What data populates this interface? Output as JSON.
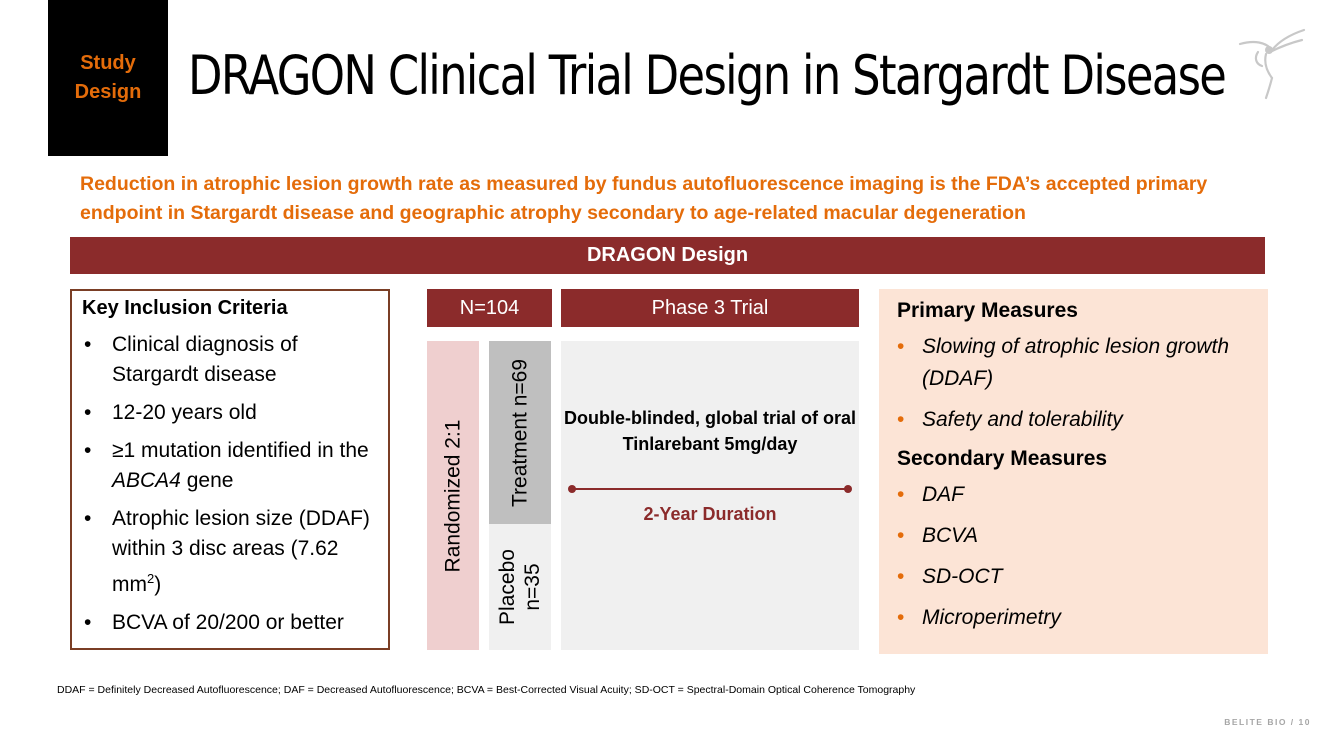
{
  "tag": {
    "line1": "Study",
    "line2": "Design"
  },
  "title": "DRAGON Clinical Trial Design in Stargardt Disease",
  "intro": "Reduction in atrophic lesion growth rate as measured by fundus autofluorescence imaging is the FDA’s accepted primary endpoint in Stargardt disease and geographic atrophy secondary to age-related macular degeneration",
  "banner": "DRAGON Design",
  "inclusion": {
    "heading": "Key Inclusion Criteria",
    "bullet": "•",
    "item1": "Clinical diagnosis of Stargardt disease",
    "item2": "12-20 years old",
    "item3_pre": "≥1 mutation identified in the ",
    "item3_gene": "ABCA4",
    "item3_post": " gene",
    "item4_pre": "Atrophic lesion size (DDAF) within 3 disc areas (7.62 mm",
    "item4_sup": "2",
    "item4_post": ")",
    "item5": "BCVA of 20/200 or better"
  },
  "design": {
    "n_label": "N=104",
    "phase_label": "Phase 3 Trial",
    "randomized": "Randomized 2:1",
    "treatment": "Treatment n=69",
    "placebo_line1": "Placebo",
    "placebo_line2": "n=35",
    "description": "Double-blinded, global trial of oral Tinlarebant 5mg/day",
    "duration": "2-Year Duration"
  },
  "measures": {
    "primary_heading": "Primary Measures",
    "primary": [
      "Slowing of atrophic lesion growth (DDAF)",
      "Safety and tolerability"
    ],
    "secondary_heading": "Secondary Measures",
    "secondary": [
      "DAF",
      "BCVA",
      "SD-OCT",
      "Microperimetry"
    ],
    "bullet": "•"
  },
  "footnote": "DDAF = Definitely Decreased Autofluorescence; DAF = Decreased Autofluorescence; BCVA = Best-Corrected Visual Acuity; SD-OCT = Spectral-Domain Optical Coherence Tomography",
  "page_footer": "BELITE BIO  /  10",
  "colors": {
    "accent": "#e46c0a",
    "maroon": "#8b2b2b",
    "peach": "#fce4d6",
    "pink": "#efcfcf"
  },
  "icons": {
    "logo": "hummingbird-logo-icon"
  }
}
